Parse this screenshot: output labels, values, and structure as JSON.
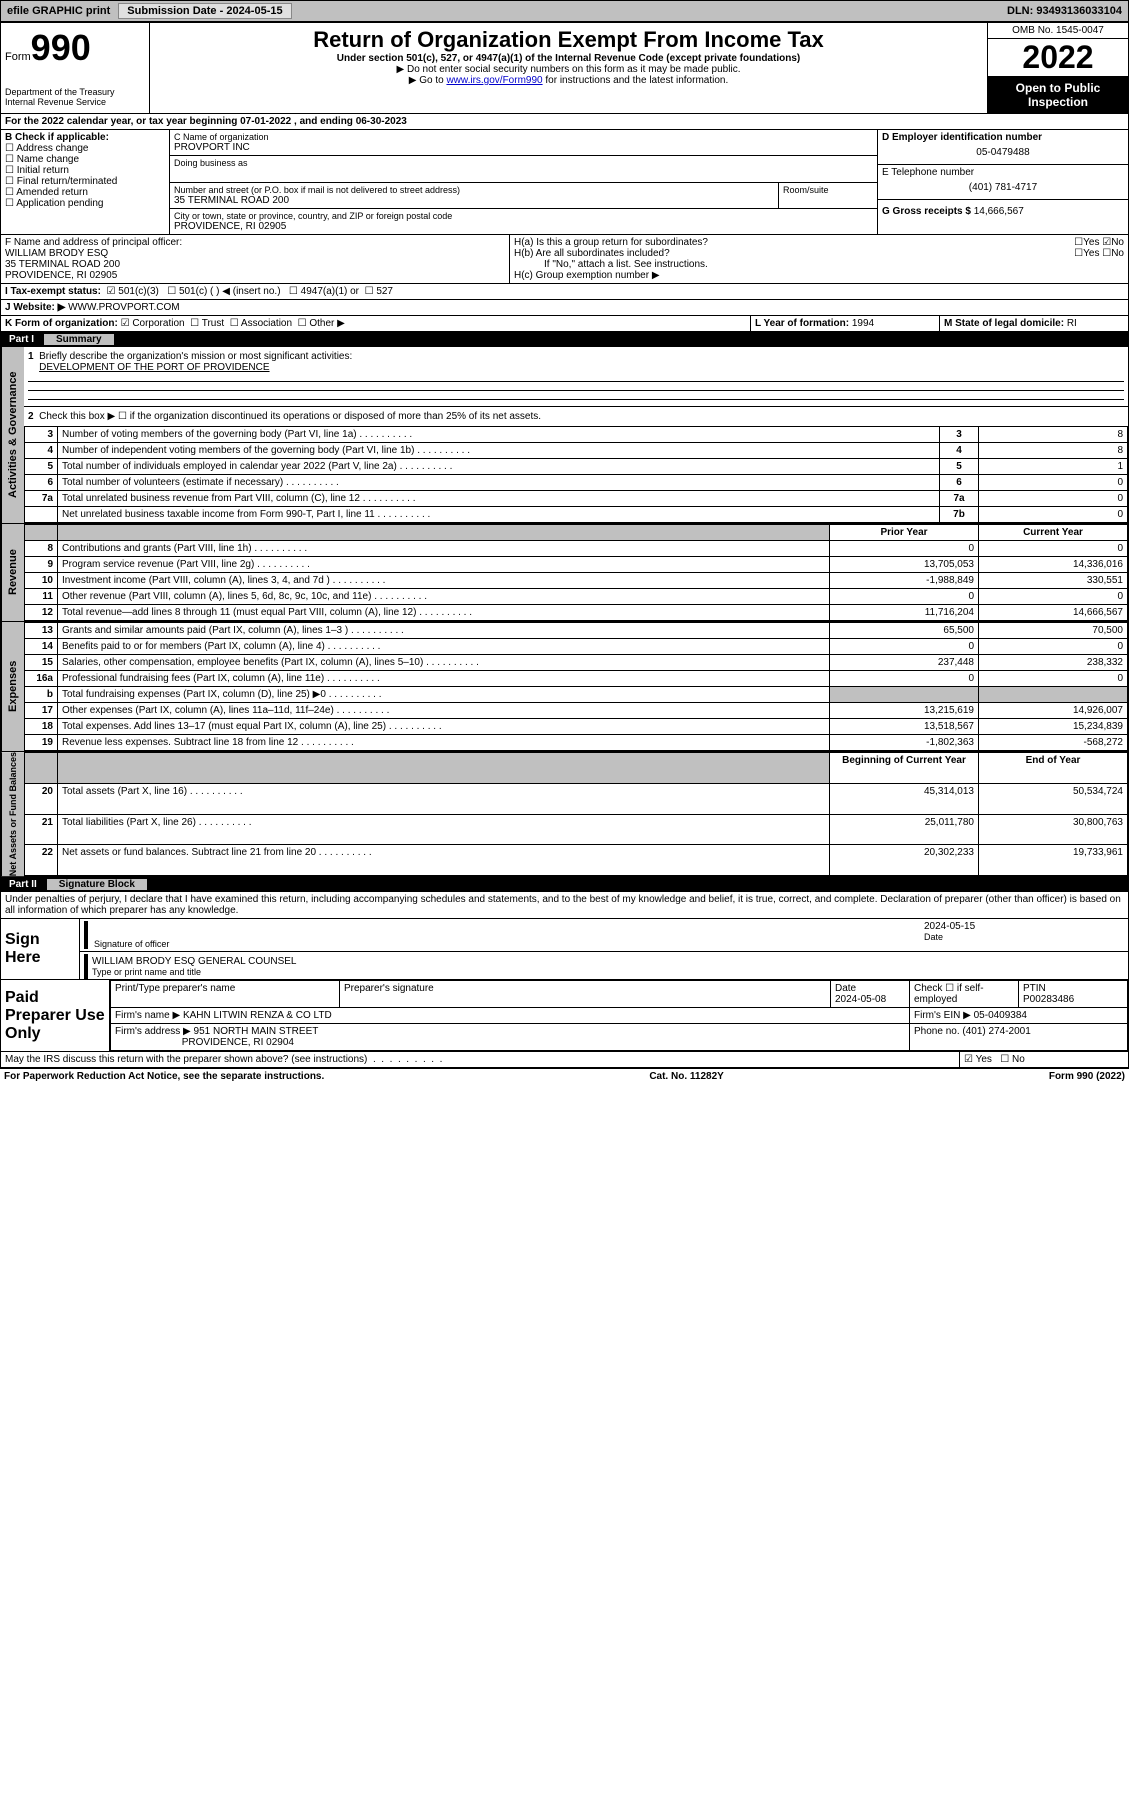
{
  "topbar": {
    "efile": "efile GRAPHIC print",
    "sub_label": "Submission Date - ",
    "sub_date": "2024-05-15",
    "dln": "DLN: 93493136033104"
  },
  "header": {
    "form_word": "Form",
    "form_num": "990",
    "dept": "Department of the Treasury",
    "irs": "Internal Revenue Service",
    "title": "Return of Organization Exempt From Income Tax",
    "subtitle": "Under section 501(c), 527, or 4947(a)(1) of the Internal Revenue Code (except private foundations)",
    "note1": "▶ Do not enter social security numbers on this form as it may be made public.",
    "note2_pre": "▶ Go to ",
    "note2_link": "www.irs.gov/Form990",
    "note2_post": " for instructions and the latest information.",
    "omb": "OMB No. 1545-0047",
    "year": "2022",
    "open": "Open to Public Inspection"
  },
  "periodA": "For the 2022 calendar year, or tax year beginning 07-01-2022   , and ending 06-30-2023",
  "boxB": {
    "label": "B Check if applicable:",
    "opts": [
      "Address change",
      "Name change",
      "Initial return",
      "Final return/terminated",
      "Amended return",
      "Application pending"
    ]
  },
  "boxC": {
    "name_label": "C Name of organization",
    "name": "PROVPORT INC",
    "dba_label": "Doing business as",
    "addr_label": "Number and street (or P.O. box if mail is not delivered to street address)",
    "room_label": "Room/suite",
    "addr": "35 TERMINAL ROAD 200",
    "city_label": "City or town, state or province, country, and ZIP or foreign postal code",
    "city": "PROVIDENCE, RI  02905"
  },
  "boxD": {
    "label": "D Employer identification number",
    "val": "05-0479488"
  },
  "boxE": {
    "label": "E Telephone number",
    "val": "(401) 781-4717"
  },
  "boxG": {
    "label": "G Gross receipts $ ",
    "val": "14,666,567"
  },
  "boxF": {
    "label": "F Name and address of principal officer:",
    "name": "WILLIAM BRODY ESQ",
    "addr1": "35 TERMINAL ROAD 200",
    "addr2": "PROVIDENCE, RI  02905"
  },
  "boxH": {
    "ha": "H(a)  Is this a group return for subordinates?",
    "hb": "H(b)  Are all subordinates included?",
    "hb_note": "If \"No,\" attach a list. See instructions.",
    "hc": "H(c)  Group exemption number ▶",
    "yes": "Yes",
    "no": "No"
  },
  "boxI": {
    "label": "I  Tax-exempt status:",
    "o1": "501(c)(3)",
    "o2": "501(c) (  ) ◀ (insert no.)",
    "o3": "4947(a)(1) or",
    "o4": "527"
  },
  "boxJ": {
    "label": "J  Website: ▶",
    "val": "WWW.PROVPORT.COM"
  },
  "boxK": {
    "label": "K Form of organization:",
    "o1": "Corporation",
    "o2": "Trust",
    "o3": "Association",
    "o4": "Other ▶"
  },
  "boxL": {
    "label": "L Year of formation: ",
    "val": "1994"
  },
  "boxM": {
    "label": "M State of legal domicile: ",
    "val": "RI"
  },
  "part1": {
    "num": "Part I",
    "title": "Summary"
  },
  "mission": {
    "q": "Briefly describe the organization's mission or most significant activities:",
    "a": "DEVELOPMENT OF THE PORT OF PROVIDENCE"
  },
  "line2": "Check this box ▶ ☐  if the organization discontinued its operations or disposed of more than 25% of its net assets.",
  "gov_rows": [
    {
      "n": "3",
      "t": "Number of voting members of the governing body (Part VI, line 1a)",
      "b": "3",
      "v": "8"
    },
    {
      "n": "4",
      "t": "Number of independent voting members of the governing body (Part VI, line 1b)",
      "b": "4",
      "v": "8"
    },
    {
      "n": "5",
      "t": "Total number of individuals employed in calendar year 2022 (Part V, line 2a)",
      "b": "5",
      "v": "1"
    },
    {
      "n": "6",
      "t": "Total number of volunteers (estimate if necessary)",
      "b": "6",
      "v": "0"
    },
    {
      "n": "7a",
      "t": "Total unrelated business revenue from Part VIII, column (C), line 12",
      "b": "7a",
      "v": "0"
    },
    {
      "n": "",
      "t": "Net unrelated business taxable income from Form 990-T, Part I, line 11",
      "b": "7b",
      "v": "0"
    }
  ],
  "col_hdr": {
    "py": "Prior Year",
    "cy": "Current Year",
    "boy": "Beginning of Current Year",
    "eoy": "End of Year"
  },
  "rev_rows": [
    {
      "n": "8",
      "t": "Contributions and grants (Part VIII, line 1h)",
      "py": "0",
      "cy": "0"
    },
    {
      "n": "9",
      "t": "Program service revenue (Part VIII, line 2g)",
      "py": "13,705,053",
      "cy": "14,336,016"
    },
    {
      "n": "10",
      "t": "Investment income (Part VIII, column (A), lines 3, 4, and 7d )",
      "py": "-1,988,849",
      "cy": "330,551"
    },
    {
      "n": "11",
      "t": "Other revenue (Part VIII, column (A), lines 5, 6d, 8c, 9c, 10c, and 11e)",
      "py": "0",
      "cy": "0"
    },
    {
      "n": "12",
      "t": "Total revenue—add lines 8 through 11 (must equal Part VIII, column (A), line 12)",
      "py": "11,716,204",
      "cy": "14,666,567"
    }
  ],
  "exp_rows": [
    {
      "n": "13",
      "t": "Grants and similar amounts paid (Part IX, column (A), lines 1–3 )",
      "py": "65,500",
      "cy": "70,500"
    },
    {
      "n": "14",
      "t": "Benefits paid to or for members (Part IX, column (A), line 4)",
      "py": "0",
      "cy": "0"
    },
    {
      "n": "15",
      "t": "Salaries, other compensation, employee benefits (Part IX, column (A), lines 5–10)",
      "py": "237,448",
      "cy": "238,332"
    },
    {
      "n": "16a",
      "t": "Professional fundraising fees (Part IX, column (A), line 11e)",
      "py": "0",
      "cy": "0"
    },
    {
      "n": "b",
      "t": "Total fundraising expenses (Part IX, column (D), line 25) ▶0",
      "py": "",
      "cy": ""
    },
    {
      "n": "17",
      "t": "Other expenses (Part IX, column (A), lines 11a–11d, 11f–24e)",
      "py": "13,215,619",
      "cy": "14,926,007"
    },
    {
      "n": "18",
      "t": "Total expenses. Add lines 13–17 (must equal Part IX, column (A), line 25)",
      "py": "13,518,567",
      "cy": "15,234,839"
    },
    {
      "n": "19",
      "t": "Revenue less expenses. Subtract line 18 from line 12",
      "py": "-1,802,363",
      "cy": "-568,272"
    }
  ],
  "na_rows": [
    {
      "n": "20",
      "t": "Total assets (Part X, line 16)",
      "py": "45,314,013",
      "cy": "50,534,724"
    },
    {
      "n": "21",
      "t": "Total liabilities (Part X, line 26)",
      "py": "25,011,780",
      "cy": "30,800,763"
    },
    {
      "n": "22",
      "t": "Net assets or fund balances. Subtract line 21 from line 20",
      "py": "20,302,233",
      "cy": "19,733,961"
    }
  ],
  "vlabels": {
    "gov": "Activities & Governance",
    "rev": "Revenue",
    "exp": "Expenses",
    "na": "Net Assets or Fund Balances"
  },
  "part2": {
    "num": "Part II",
    "title": "Signature Block"
  },
  "penalty": "Under penalties of perjury, I declare that I have examined this return, including accompanying schedules and statements, and to the best of my knowledge and belief, it is true, correct, and complete. Declaration of preparer (other than officer) is based on all information of which preparer has any knowledge.",
  "sign": {
    "here": "Sign Here",
    "sig_label": "Signature of officer",
    "date_label": "Date",
    "date": "2024-05-15",
    "name": "WILLIAM BRODY ESQ  GENERAL COUNSEL",
    "name_label": "Type or print name and title"
  },
  "paid": {
    "label": "Paid Preparer Use Only",
    "c1": "Print/Type preparer's name",
    "c2": "Preparer's signature",
    "c3": "Date",
    "date": "2024-05-08",
    "c4": "Check ☐ if self-employed",
    "c5": "PTIN",
    "ptin": "P00283486",
    "firm_label": "Firm's name    ▶",
    "firm": "KAHN LITWIN RENZA & CO LTD",
    "ein_label": "Firm's EIN ▶",
    "ein": "05-0409384",
    "addr_label": "Firm's address ▶",
    "addr1": "951 NORTH MAIN STREET",
    "addr2": "PROVIDENCE, RI  02904",
    "phone_label": "Phone no.",
    "phone": "(401) 274-2001"
  },
  "discuss": {
    "q": "May the IRS discuss this return with the preparer shown above? (see instructions)",
    "yes": "Yes",
    "no": "No"
  },
  "footer": {
    "left": "For Paperwork Reduction Act Notice, see the separate instructions.",
    "mid": "Cat. No. 11282Y",
    "right": "Form 990 (2022)"
  },
  "checked": "☑",
  "unchecked": "☐"
}
